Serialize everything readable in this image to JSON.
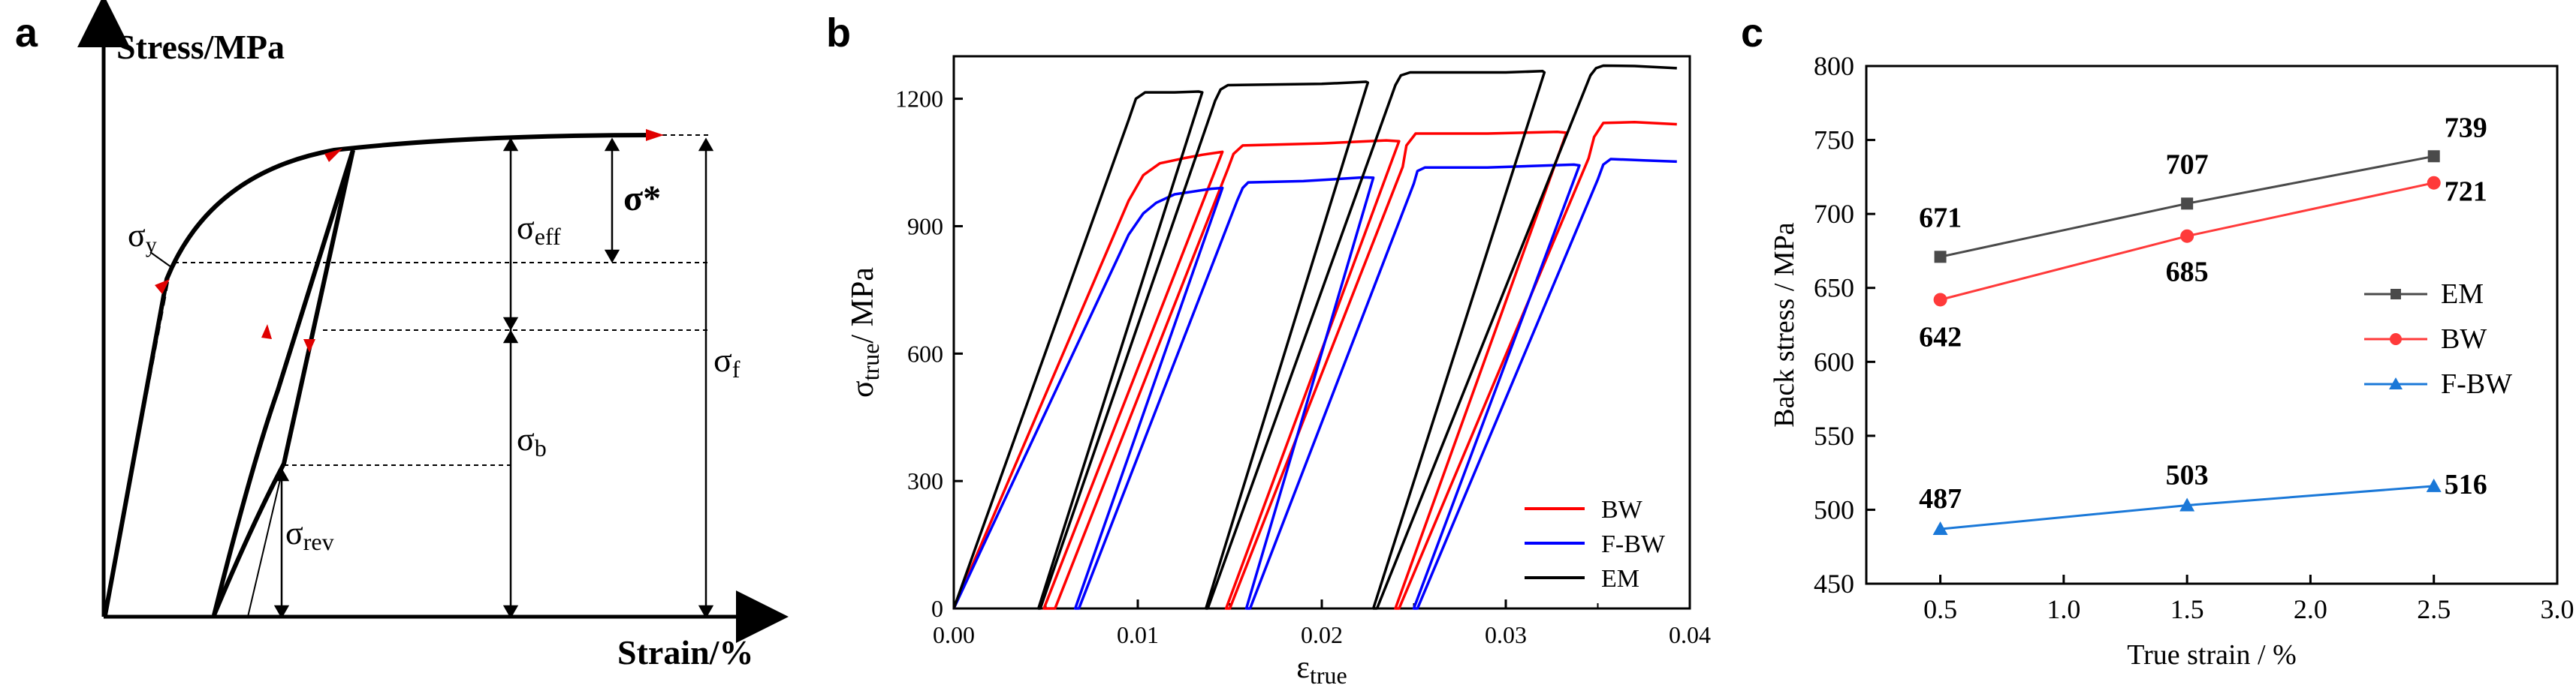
{
  "chart_data": [
    {
      "panel": "a",
      "type": "line",
      "title": "",
      "ylabel": "Stress/MPa",
      "xlabel": "Strain/%",
      "annotations": [
        "σy",
        "σeff",
        "σ*",
        "σf",
        "σb",
        "σrev"
      ],
      "colors": {
        "curve": "#000000",
        "arrow": "#e00000"
      }
    },
    {
      "panel": "b",
      "type": "line",
      "xlabel_main": "ε",
      "xlabel_sub": "true",
      "ylabel_main": "σ",
      "ylabel_sub": "true",
      "ylabel_tail": "/ MPa",
      "xlim": [
        0,
        0.04
      ],
      "ylim": [
        0,
        1300
      ],
      "xticks": [
        0,
        0.01,
        0.02,
        0.03,
        0.04
      ],
      "xtick_labels": [
        "0.00",
        "0.01",
        "0.02",
        "0.03",
        "0.04"
      ],
      "yticks": [
        0,
        300,
        600,
        900,
        1200
      ],
      "ytick_labels": [
        "0",
        "300",
        "600",
        "900",
        "1200"
      ],
      "legend": [
        "BW",
        "F-BW",
        "EM"
      ],
      "series": [
        {
          "name": "BW",
          "color": "#ff0000",
          "x": [
            0.0,
            0.0095,
            0.0103,
            0.0112,
            0.0125,
            0.0135,
            0.0146,
            0.0049,
            0.0055,
            0.0149,
            0.0152,
            0.0157,
            0.02,
            0.0235,
            0.0242,
            0.0148,
            0.015,
            0.0244,
            0.0246,
            0.0251,
            0.029,
            0.0328,
            0.0333,
            0.024,
            0.0242,
            0.0345,
            0.0348,
            0.0353,
            0.037,
            0.0393
          ],
          "y": [
            0,
            960,
            1020,
            1048,
            1060,
            1068,
            1075,
            0,
            0,
            1035,
            1070,
            1090,
            1095,
            1102,
            1100,
            0,
            0,
            1040,
            1090,
            1118,
            1118,
            1122,
            1120,
            0,
            0,
            1060,
            1110,
            1143,
            1145,
            1140
          ]
        },
        {
          "name": "F-BW",
          "color": "#0000ff",
          "x": [
            0.0,
            0.0095,
            0.0103,
            0.011,
            0.012,
            0.014,
            0.0146,
            0.0066,
            0.0068,
            0.0154,
            0.0157,
            0.016,
            0.019,
            0.0223,
            0.0228,
            0.0159,
            0.0161,
            0.025,
            0.0252,
            0.0256,
            0.029,
            0.0337,
            0.034,
            0.025,
            0.0252,
            0.035,
            0.0353,
            0.0357,
            0.0375,
            0.0393
          ],
          "y": [
            0,
            880,
            930,
            955,
            975,
            988,
            990,
            0,
            0,
            960,
            990,
            1003,
            1006,
            1015,
            1014,
            0,
            0,
            1000,
            1030,
            1038,
            1038,
            1045,
            1043,
            0,
            0,
            1010,
            1045,
            1058,
            1055,
            1052
          ]
        },
        {
          "name": "EM",
          "color": "#000000",
          "x": [
            0.0,
            0.0095,
            0.0099,
            0.0104,
            0.012,
            0.0133,
            0.0135,
            0.0046,
            0.0047,
            0.0142,
            0.0145,
            0.0149,
            0.02,
            0.0224,
            0.0225,
            0.0137,
            0.0138,
            0.024,
            0.0243,
            0.0248,
            0.03,
            0.032,
            0.0321,
            0.0228,
            0.023,
            0.0346,
            0.0349,
            0.0353,
            0.037,
            0.0393
          ],
          "y": [
            0,
            1150,
            1200,
            1215,
            1215,
            1217,
            1215,
            0,
            0,
            1195,
            1222,
            1232,
            1235,
            1240,
            1238,
            0,
            0,
            1232,
            1255,
            1262,
            1262,
            1265,
            1262,
            0,
            0,
            1255,
            1272,
            1278,
            1277,
            1272
          ]
        }
      ]
    },
    {
      "panel": "c",
      "type": "line",
      "xlabel": "True strain / %",
      "ylabel": "Back stress / MPa",
      "xlim": [
        0.2,
        3.0
      ],
      "ylim": [
        450,
        800
      ],
      "xticks": [
        0.5,
        1.0,
        1.5,
        2.0,
        2.5,
        3.0
      ],
      "xtick_labels": [
        "0.5",
        "1.0",
        "1.5",
        "2.0",
        "2.5",
        "3.0"
      ],
      "yticks": [
        450,
        500,
        550,
        600,
        650,
        700,
        750,
        800
      ],
      "ytick_labels": [
        "450",
        "500",
        "550",
        "600",
        "650",
        "700",
        "750",
        "800"
      ],
      "legend": [
        "EM",
        "BW",
        "F-BW"
      ],
      "series": [
        {
          "name": "EM",
          "color": "#4a4a4a",
          "marker": "square",
          "x": [
            0.5,
            1.5,
            2.5
          ],
          "values": [
            671,
            707,
            739
          ],
          "labels": [
            "671",
            "707",
            "739"
          ]
        },
        {
          "name": "BW",
          "color": "#ff3a3a",
          "marker": "circle",
          "x": [
            0.5,
            1.5,
            2.5
          ],
          "values": [
            642,
            685,
            721
          ],
          "labels": [
            "642",
            "685",
            "721"
          ]
        },
        {
          "name": "F-BW",
          "color": "#1a78d8",
          "marker": "triangle",
          "x": [
            0.5,
            1.5,
            2.5
          ],
          "values": [
            487,
            503,
            516
          ],
          "labels": [
            "487",
            "503",
            "516"
          ]
        }
      ]
    }
  ],
  "panels": {
    "a": "a",
    "b": "b",
    "c": "c"
  }
}
